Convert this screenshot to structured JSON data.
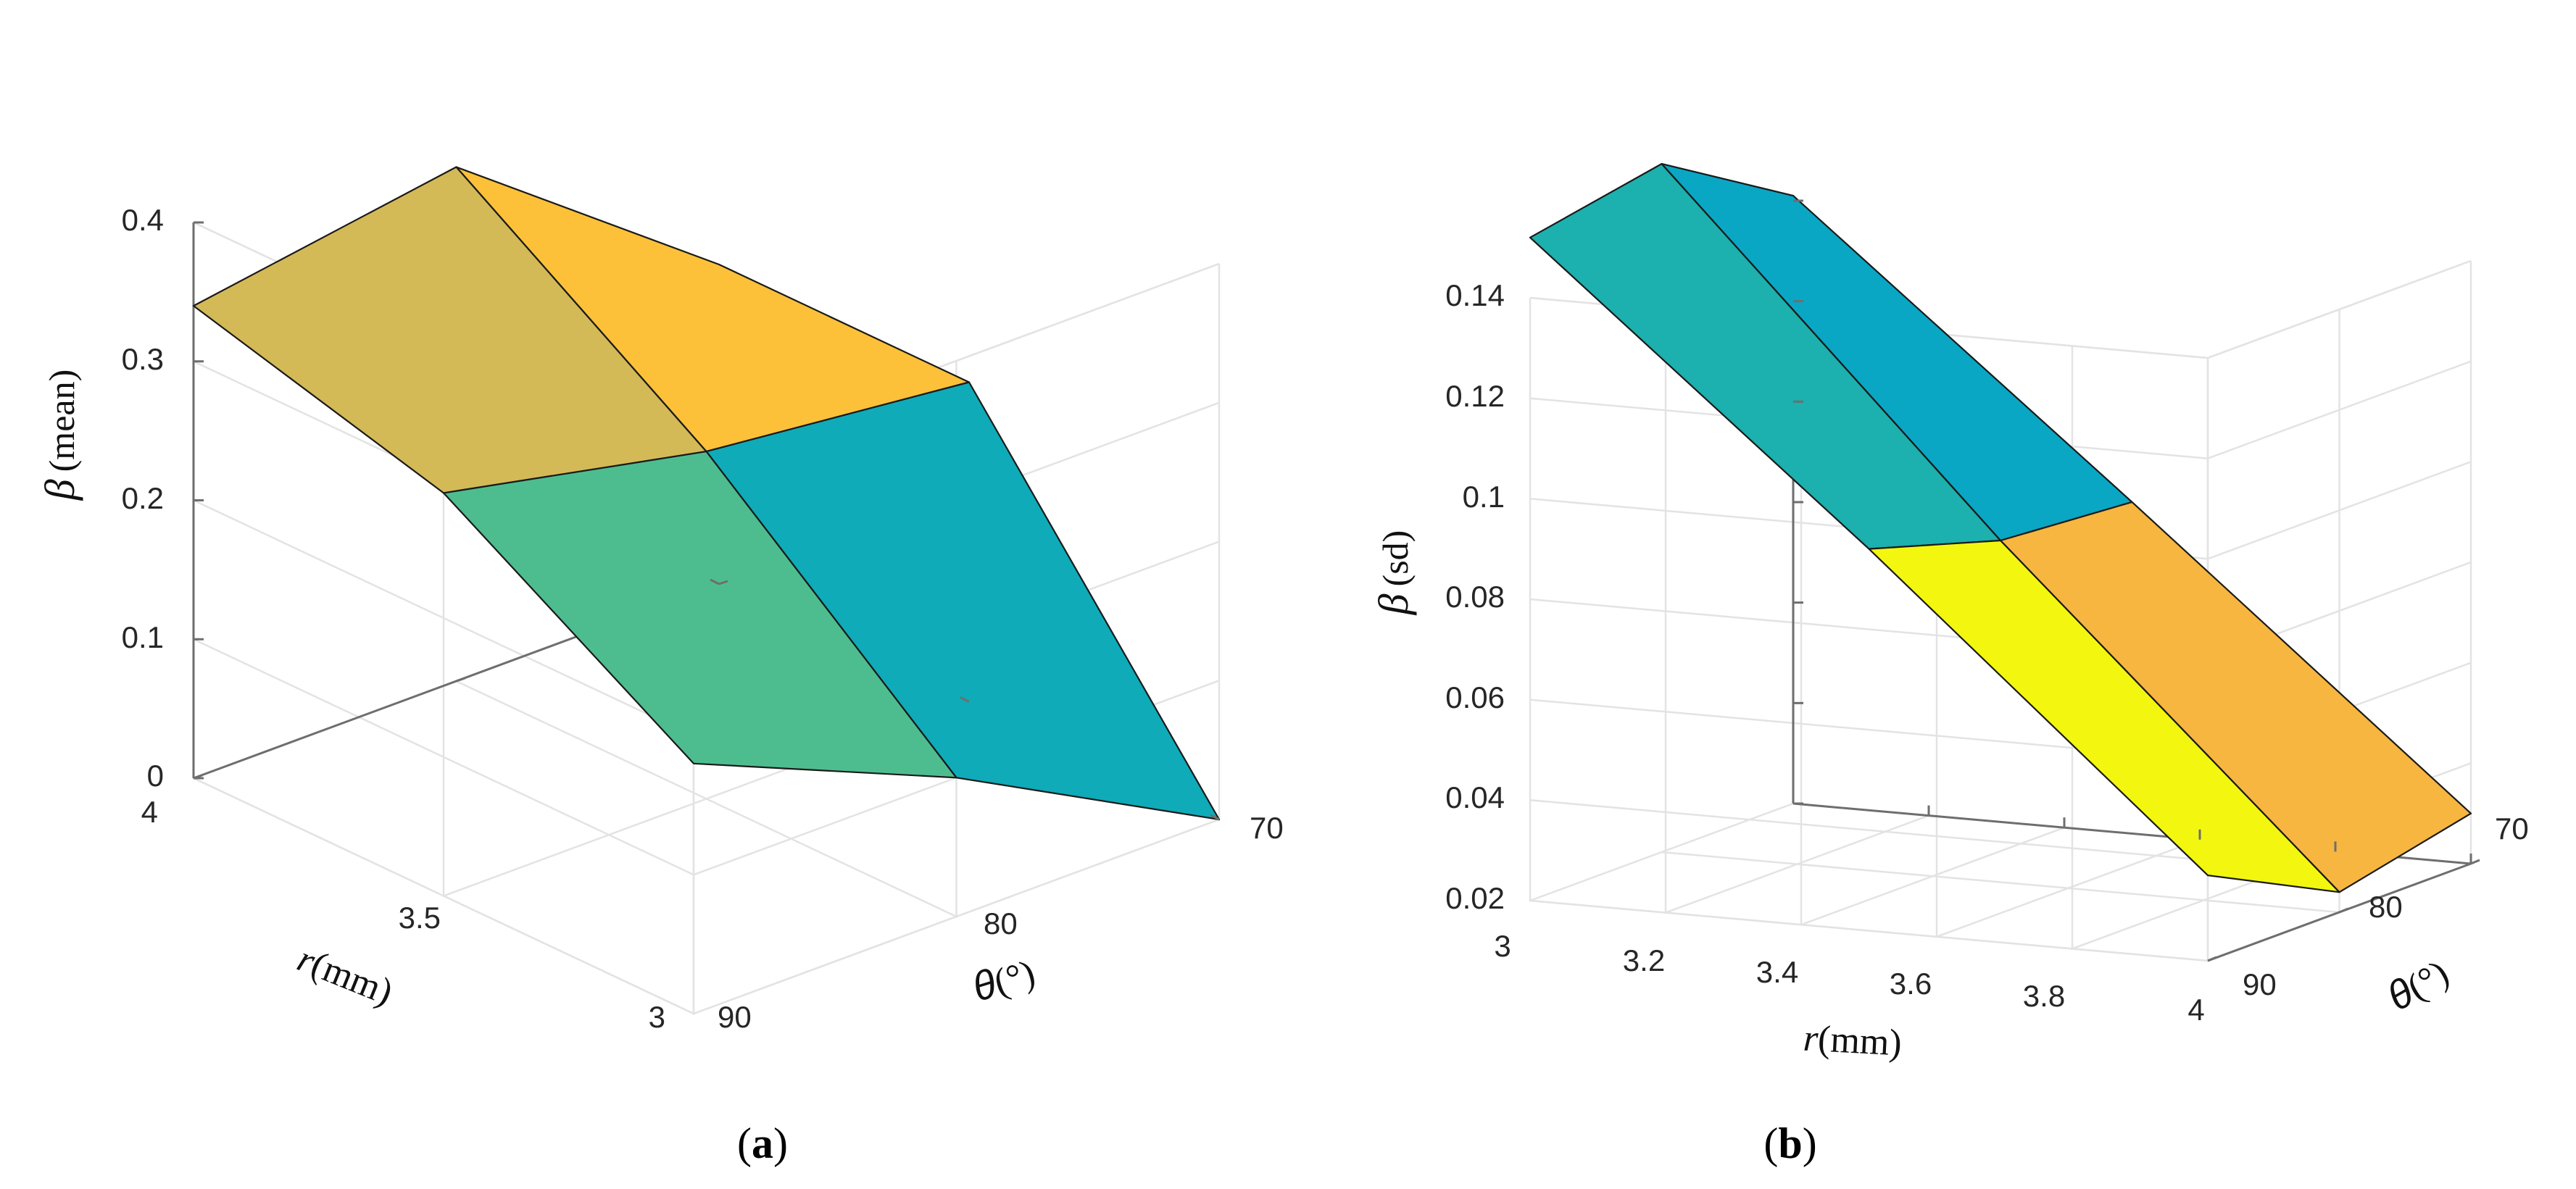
{
  "chart_data": [
    {
      "id": "a",
      "type": "surface",
      "caption_open": "(",
      "caption_letter": "a",
      "caption_close": ")",
      "zlabel_symbol": "β",
      "zlabel_text": "(mean)",
      "rlabel_symbol": "r",
      "rlabel_text": "(mm)",
      "tlabel_symbol": "θ",
      "tlabel_text": "(°)",
      "r_values": [
        3,
        3.5,
        4
      ],
      "theta_values": [
        70,
        80,
        90
      ],
      "z_ticks": [
        "0",
        "0.1",
        "0.2",
        "0.3",
        "0.4"
      ],
      "r_ticks": [
        "3",
        "3.5",
        "4"
      ],
      "theta_ticks": [
        "70",
        "80",
        "90"
      ],
      "zlim": [
        0,
        0.4
      ],
      "z_grid": [
        [
          0.18,
          0.1,
          0.0
        ],
        [
          0.29,
          0.25,
          0.23
        ],
        [
          0.34,
          0.37,
          0.23
        ]
      ],
      "patch_colors": [
        "#4dbd8f",
        "#0fabb8",
        "#d4b957",
        "#fcc139"
      ]
    },
    {
      "id": "b",
      "type": "surface",
      "caption_open": "(",
      "caption_letter": "b",
      "caption_close": ")",
      "zlabel_symbol": "β",
      "zlabel_text": "(sd)",
      "rlabel_symbol": "r",
      "rlabel_text": "(mm)",
      "tlabel_symbol": "θ",
      "tlabel_text": "(°)",
      "r_values": [
        3,
        3.5,
        4
      ],
      "theta_values": [
        70,
        80,
        90
      ],
      "z_ticks": [
        "0.02",
        "0.04",
        "0.06",
        "0.08",
        "0.1",
        "0.12",
        "0.14"
      ],
      "r_ticks": [
        "3",
        "3.2",
        "3.4",
        "3.6",
        "3.8",
        "4"
      ],
      "theta_ticks": [
        "70",
        "80",
        "90"
      ],
      "zlim": [
        0.02,
        0.14
      ],
      "z_grid": [
        [
          0.152,
          0.157,
          0.141
        ],
        [
          0.096,
          0.088,
          0.086
        ],
        [
          0.037,
          0.024,
          0.03
        ]
      ],
      "patch_colors": [
        "#1cb0ae",
        "#09a7c4",
        "#f3f710",
        "#f6b640"
      ]
    }
  ]
}
